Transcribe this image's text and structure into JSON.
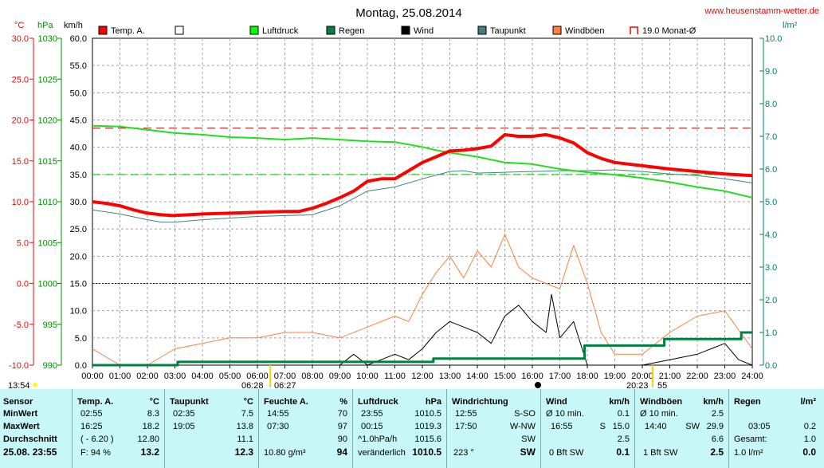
{
  "chart_data": {
    "type": "line",
    "title": "Montag, 25.08.2014",
    "site": "www.heusenstamm-wetter.de",
    "axis_units": {
      "temp": "°C",
      "pressure": "hPa",
      "wind": "km/h",
      "rain": "l/m²"
    },
    "temp_ticks": [
      "30.0",
      "25.0",
      "20.0",
      "15.0",
      "10.0",
      "5.0",
      "0.0",
      "-5.0",
      "-10.0"
    ],
    "pressure_ticks": [
      "1030",
      "1025",
      "1020",
      "1015",
      "1010",
      "1005",
      "1000",
      "995",
      "990"
    ],
    "wind_ticks": [
      "60.0",
      "55.0",
      "50.0",
      "45.0",
      "40.0",
      "35.0",
      "30.0",
      "25.0",
      "20.0",
      "15.0",
      "10.0",
      "5.0",
      "0.0"
    ],
    "rain_ticks": [
      "10.0",
      "9.0",
      "8.0",
      "7.0",
      "6.0",
      "5.0",
      "4.0",
      "3.0",
      "2.0",
      "1.0",
      "0.0"
    ],
    "x_ticks": [
      "00:00",
      "01:00",
      "02:00",
      "03:00",
      "04:00",
      "05:00",
      "06:00",
      "07:00",
      "08:00",
      "09:00",
      "10:00",
      "11:00",
      "12:00",
      "13:00",
      "14:00",
      "15:00",
      "16:00",
      "17:00",
      "18:00",
      "19:00",
      "20:00",
      "21:00",
      "22:00",
      "23:00",
      "24:00"
    ],
    "legend": [
      {
        "label": "Temp. A.",
        "color": "#ff0000"
      },
      {
        "label": "",
        "color": "#ffffff"
      },
      {
        "label": "Luftdruck",
        "color": "#00ff00"
      },
      {
        "label": "Regen",
        "color": "#008040"
      },
      {
        "label": "Wind",
        "color": "#000000"
      },
      {
        "label": "Taupunkt",
        "color": "#408080"
      },
      {
        "label": "Windböen",
        "color": "#ff8040"
      },
      {
        "label": "19.0 Monat-Ø",
        "color": "#ff0000"
      }
    ],
    "sunrise": "06:28",
    "sunset": "20:23",
    "moon_time": "06:27",
    "sunset_suffix": "55",
    "start_time": "13:54",
    "series": {
      "temp": {
        "unit": "°C",
        "x": [
          0,
          0.5,
          1,
          1.5,
          2,
          2.5,
          2.9,
          3.5,
          4,
          5,
          6,
          7,
          7.5,
          8,
          8.5,
          9,
          9.5,
          10,
          10.5,
          11,
          11.5,
          12,
          12.5,
          13,
          13.5,
          14,
          14.5,
          15,
          15.5,
          16,
          16.5,
          17,
          17.5,
          18,
          18.5,
          19,
          19.5,
          20,
          21,
          22,
          23,
          24
        ],
        "y": [
          10.0,
          9.8,
          9.5,
          9.0,
          8.6,
          8.4,
          8.3,
          8.4,
          8.5,
          8.6,
          8.7,
          8.8,
          8.8,
          9.2,
          9.8,
          10.5,
          11.3,
          12.5,
          12.8,
          12.8,
          13.8,
          14.8,
          15.5,
          16.2,
          16.3,
          16.5,
          16.8,
          18.2,
          18.0,
          18.0,
          18.2,
          17.8,
          17.2,
          16.0,
          15.3,
          14.8,
          14.6,
          14.4,
          14.0,
          13.7,
          13.4,
          13.2
        ]
      },
      "dewpoint": {
        "unit": "°C",
        "x": [
          0,
          1,
          2,
          2.5,
          3,
          4,
          5,
          6,
          7,
          8,
          9,
          10,
          11,
          12,
          13,
          13.5,
          14,
          15,
          16,
          17,
          18,
          19,
          20,
          21,
          22,
          23,
          24
        ],
        "y": [
          9.0,
          8.5,
          7.8,
          7.5,
          7.5,
          7.8,
          8.0,
          8.2,
          8.3,
          8.4,
          9.5,
          11.3,
          11.8,
          12.8,
          13.7,
          13.8,
          13.5,
          13.6,
          13.7,
          13.8,
          13.8,
          13.9,
          13.7,
          13.4,
          13.2,
          12.8,
          12.3
        ]
      },
      "pressure": {
        "unit": "hPa",
        "x": [
          0,
          1,
          2,
          3,
          4,
          5,
          6,
          7,
          8,
          9,
          10,
          11,
          12,
          12.5,
          13,
          14,
          15,
          16,
          17,
          18,
          19,
          20,
          21,
          22,
          23,
          24
        ],
        "y": [
          1019.3,
          1019.2,
          1018.8,
          1018.4,
          1018.2,
          1017.9,
          1017.8,
          1017.6,
          1017.8,
          1017.6,
          1017.4,
          1017.3,
          1016.7,
          1016.3,
          1016.0,
          1015.5,
          1014.8,
          1014.6,
          1014.0,
          1013.6,
          1013.3,
          1012.9,
          1012.4,
          1011.8,
          1011.3,
          1010.5
        ]
      },
      "rain": {
        "unit": "l/m²",
        "x": [
          0,
          3.1,
          3.1,
          12.4,
          12.4,
          17.9,
          17.9,
          20.8,
          20.8,
          23.6,
          23.6,
          24
        ],
        "y": [
          0,
          0,
          0.1,
          0.1,
          0.2,
          0.2,
          0.6,
          0.6,
          0.8,
          0.8,
          1.0,
          1.0
        ]
      },
      "wind": {
        "unit": "km/h",
        "x": [
          0,
          9,
          9.5,
          10,
          11,
          11.5,
          12,
          12.5,
          13,
          13.5,
          14,
          14.5,
          15,
          15.5,
          16,
          16.5,
          16.7,
          17,
          17.5,
          18,
          18.5,
          19,
          20,
          21,
          22,
          23,
          23.5,
          24
        ],
        "y": [
          0,
          0,
          2,
          0,
          2,
          1,
          3,
          6,
          8,
          7,
          6,
          4,
          9,
          11,
          8,
          6,
          13,
          5,
          8,
          0,
          0,
          0,
          0,
          1,
          2,
          4,
          1,
          0
        ]
      },
      "gusts": {
        "unit": "km/h",
        "x": [
          0,
          1,
          2,
          3,
          4,
          5,
          6,
          7,
          8,
          9,
          10,
          11,
          11.5,
          12,
          12.5,
          13,
          13.5,
          14,
          14.5,
          15,
          15.5,
          16,
          16.5,
          17,
          17.5,
          18,
          18.5,
          19,
          20,
          21,
          22,
          23,
          24
        ],
        "y": [
          3,
          0,
          0,
          3,
          4,
          5,
          5,
          6,
          6,
          5,
          7,
          9,
          8,
          13,
          17,
          20,
          16,
          21,
          18,
          24,
          18,
          16,
          15,
          14,
          22,
          15,
          6,
          2,
          2,
          6,
          9,
          10,
          3
        ]
      },
      "month_avg": {
        "unit": "°C",
        "value": 19.0
      },
      "green_dash": {
        "unit": "km/h",
        "value": 35.0
      },
      "blue_dot": {
        "unit": "°C",
        "value": 0.0
      }
    }
  },
  "footer": {
    "c0": {
      "h": "Sensor",
      "r1": "MinWert",
      "r2": "MaxWert",
      "r3": "Durchschnitt",
      "r4": "25.08. 23:55"
    },
    "c1": {
      "h": "Temp. A.",
      "u": "°C",
      "t1": "02:55",
      "v1": "8.3",
      "t2": "16:25",
      "v2": "18.2",
      "t3": "( - 6.20 )",
      "v3": "12.80",
      "t4": "F: 94 %",
      "v4": "13.2"
    },
    "c2": {
      "h": "Taupunkt",
      "u": "°C",
      "t1": "02:35",
      "v1": "7.5",
      "t2": "19:05",
      "v2": "13.8",
      "v3": "11.1",
      "v4": "12.3"
    },
    "c3": {
      "h": "Feuchte A.",
      "u": "%",
      "t1": "14:55",
      "v1": "70",
      "t2": "07:30",
      "v2": "97",
      "v3": "90",
      "t4": "10.80 g/m³",
      "v4": "94"
    },
    "c4": {
      "h": "Luftdruck",
      "u": "hPa",
      "t1": "23:55",
      "v1": "1010.5",
      "t2": "00:15",
      "v2": "1019.3",
      "t3": "^1.0hPa/h",
      "v3": "1015.6",
      "t4": "veränderlich",
      "v4": "1010.5"
    },
    "c5": {
      "h": "Windrichtung",
      "t1": "12:55",
      "v1": "S-SO",
      "t2": "17:50",
      "v2": "W-NW",
      "v3": "SW",
      "t4": "223 °",
      "v4": "SW"
    },
    "c6": {
      "h": "Wind",
      "u": "km/h",
      "t1": "Ø 10 min.",
      "v1": "0.1",
      "t2": "16:55",
      "m2": "S",
      "v2": "15.0",
      "v3": "2.5",
      "t4": "0 Bft SW",
      "v4": "0.1"
    },
    "c7": {
      "h": "Windböen",
      "u": "km/h",
      "t1": "Ø 10 min.",
      "v1": "2.5",
      "t2": "14:40",
      "m2": "SW",
      "v2": "29.9",
      "v3": "6.6",
      "t4": "1 Bft SW",
      "v4": "2.5"
    },
    "c8": {
      "h": "Regen",
      "u": "l/m²",
      "t2": "03:05",
      "v2": "0.2",
      "t3": "Gesamt:",
      "v3": "1.0",
      "t4": "1.0 l/m²",
      "v4": "0.0"
    }
  }
}
